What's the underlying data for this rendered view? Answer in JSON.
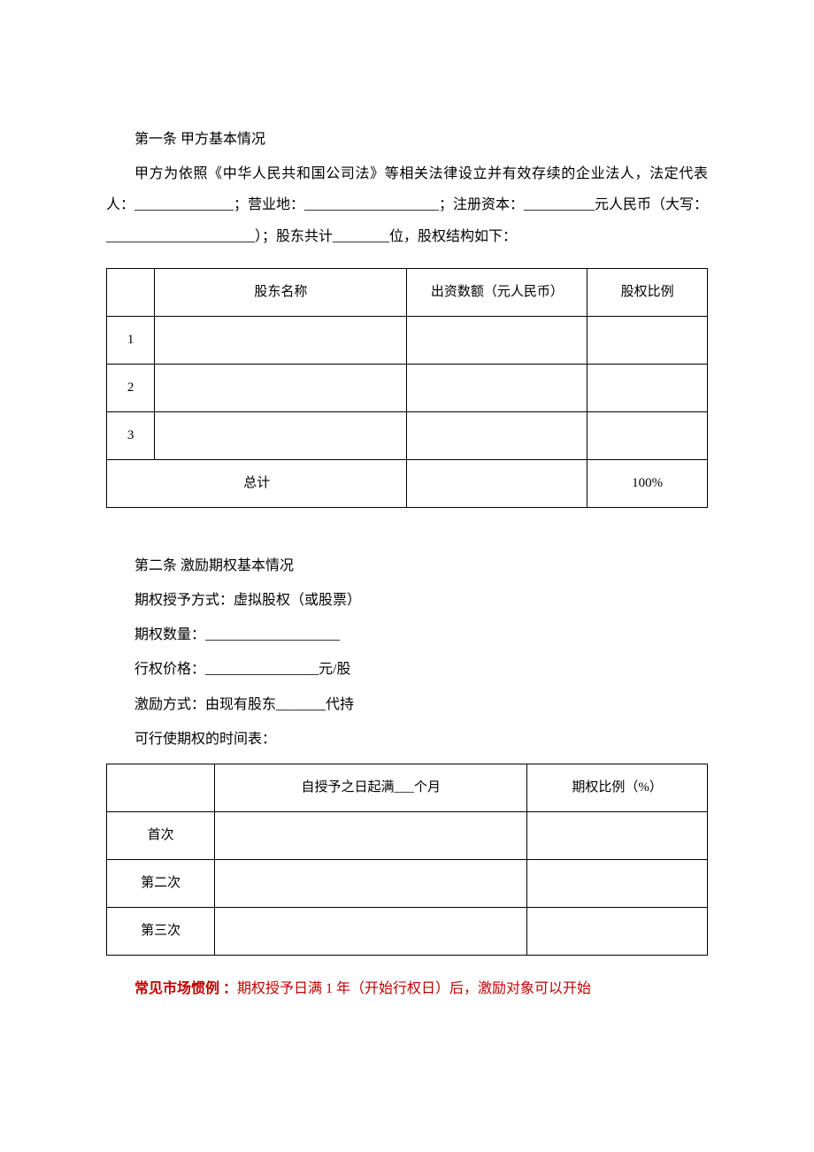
{
  "article1": {
    "heading": "第一条  甲方基本情况",
    "body": "甲方为依照《中华人民共和国公司法》等相关法律设立并有效存续的企业法人，法定代表人：______________；营业地：___________________；注册资本：__________元人民币（大写：_____________________）；股东共计________位，股权结构如下："
  },
  "table1": {
    "columns": [
      "",
      "股东名称",
      "出资数额（元人民币）",
      "股权比例"
    ],
    "rows": [
      [
        "1",
        "",
        "",
        ""
      ],
      [
        "2",
        "",
        "",
        ""
      ],
      [
        "3",
        "",
        "",
        ""
      ]
    ],
    "total_label": "总计",
    "total_value": "100%",
    "col_widths_pct": [
      8,
      42,
      30,
      20
    ]
  },
  "article2": {
    "heading": "第二条  激励期权基本情况",
    "lines": [
      "期权授予方式：虚拟股权（或股票）",
      "期权数量：___________________",
      "行权价格：________________元/股",
      "激励方式：由现有股东_______代持",
      "可行使期权的时间表："
    ]
  },
  "table2": {
    "columns": [
      "",
      "自授予之日起满___个月",
      "期权比例（%）"
    ],
    "rows": [
      [
        "首次",
        "",
        ""
      ],
      [
        "第二次",
        "",
        ""
      ],
      [
        "第三次",
        "",
        ""
      ]
    ],
    "col_widths_pct": [
      18,
      52,
      30
    ]
  },
  "note": {
    "label": "常见市场惯例 ：",
    "body": "期权授予日满 1 年（开始行权日）后，激励对象可以开始",
    "label_color": "#c00000",
    "body_color": "#c00000"
  },
  "style": {
    "background_color": "#ffffff",
    "text_color": "#000000",
    "border_color": "#000000",
    "font_family": "SimSun",
    "body_fontsize": 16,
    "table_fontsize": 15
  }
}
